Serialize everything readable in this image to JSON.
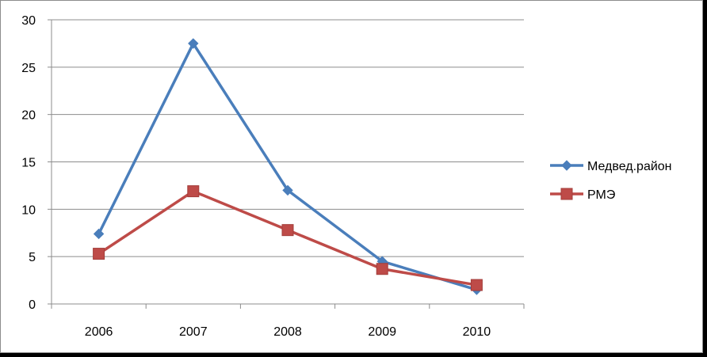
{
  "chart_data": {
    "type": "line",
    "categories": [
      "2006",
      "2007",
      "2008",
      "2009",
      "2010"
    ],
    "y_ticks": [
      "0",
      "5",
      "10",
      "15",
      "20",
      "25",
      "30"
    ],
    "ylim": [
      0,
      30
    ],
    "grid": true,
    "legend_position": "right",
    "series": [
      {
        "name": "Медвед.район",
        "values": [
          7.4,
          27.5,
          12.0,
          4.5,
          1.5
        ],
        "color": "#4a7ebb",
        "marker": "diamond"
      },
      {
        "name": "РМЭ",
        "values": [
          5.3,
          11.9,
          7.8,
          3.7,
          2.0
        ],
        "color": "#be4b48",
        "marker": "square"
      }
    ]
  }
}
